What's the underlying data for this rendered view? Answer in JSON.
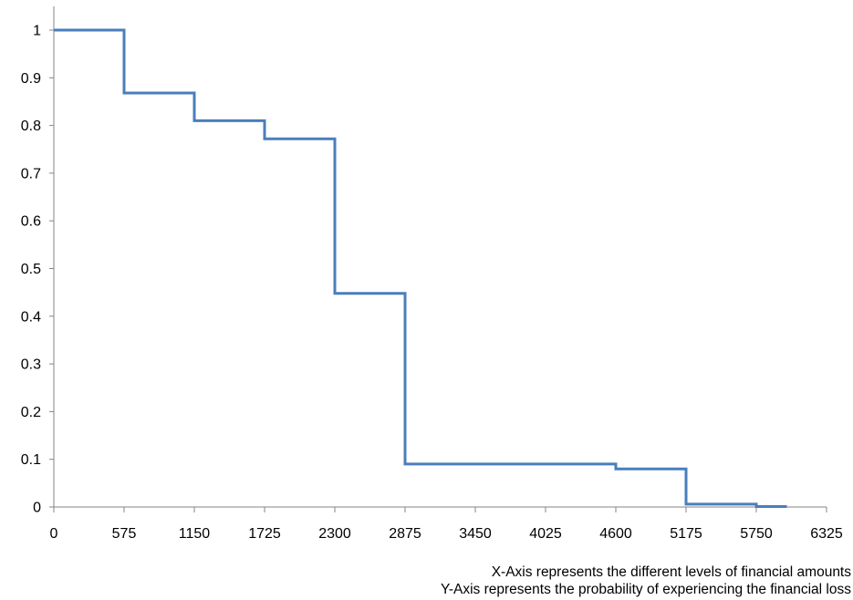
{
  "chart_data": {
    "type": "line",
    "step": true,
    "x_ticks": [
      0,
      575,
      1150,
      1725,
      2300,
      2875,
      3450,
      4025,
      4600,
      5175,
      5750,
      6325
    ],
    "y_ticks": [
      0,
      0.1,
      0.2,
      0.3,
      0.4,
      0.5,
      0.6,
      0.7,
      0.8,
      0.9,
      1
    ],
    "xlim": [
      0,
      6325
    ],
    "ylim": [
      0,
      1
    ],
    "grid": false,
    "series": [
      {
        "color": "#4a7ebb",
        "points": [
          {
            "x": 0,
            "y": 1
          },
          {
            "x": 575,
            "y": 1
          },
          {
            "x": 575,
            "y": 0.868
          },
          {
            "x": 1150,
            "y": 0.868
          },
          {
            "x": 1150,
            "y": 0.81
          },
          {
            "x": 1725,
            "y": 0.81
          },
          {
            "x": 1725,
            "y": 0.772
          },
          {
            "x": 2300,
            "y": 0.772
          },
          {
            "x": 2300,
            "y": 0.448
          },
          {
            "x": 2875,
            "y": 0.448
          },
          {
            "x": 2875,
            "y": 0.09
          },
          {
            "x": 4600,
            "y": 0.09
          },
          {
            "x": 4600,
            "y": 0.08
          },
          {
            "x": 5175,
            "y": 0.08
          },
          {
            "x": 5175,
            "y": 0.006
          },
          {
            "x": 5750,
            "y": 0.006
          },
          {
            "x": 5750,
            "y": 0.001
          },
          {
            "x": 6000,
            "y": 0.001
          }
        ]
      }
    ]
  },
  "captions": {
    "x_axis": "X-Axis represents the different levels of financial amounts",
    "y_axis": "Y-Axis represents the probability of experiencing the financial loss"
  }
}
